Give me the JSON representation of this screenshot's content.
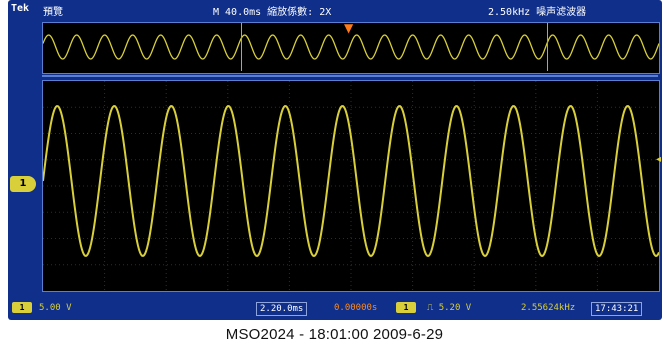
{
  "topbar": {
    "brand": "Tek",
    "mode": "預覽",
    "timebase": "M 40.0ms 縮放係數: 2X",
    "frequency": "2.50kHz 噪声滤波器"
  },
  "overview": {
    "trigger_marker": "▼"
  },
  "main": {
    "trigger_marker": "▼",
    "channel_marker": "1"
  },
  "bottombar": {
    "ch1_badge": "1",
    "ch1_scale": "5.00 V",
    "zoom_time": "2.20.0ms",
    "zoom_offset": "0.00000s",
    "trigger_badge": "1",
    "trigger_level": "⎍ 5.20 V",
    "trigger_freq": "2.55624kHz",
    "clock": "17:43:21"
  },
  "caption": "MSO2024 - 18:01:00   2009-6-29",
  "colors": {
    "background": "#0f2f8a",
    "trace": "#d8cf3a",
    "trigger": "#ff7a1a"
  }
}
